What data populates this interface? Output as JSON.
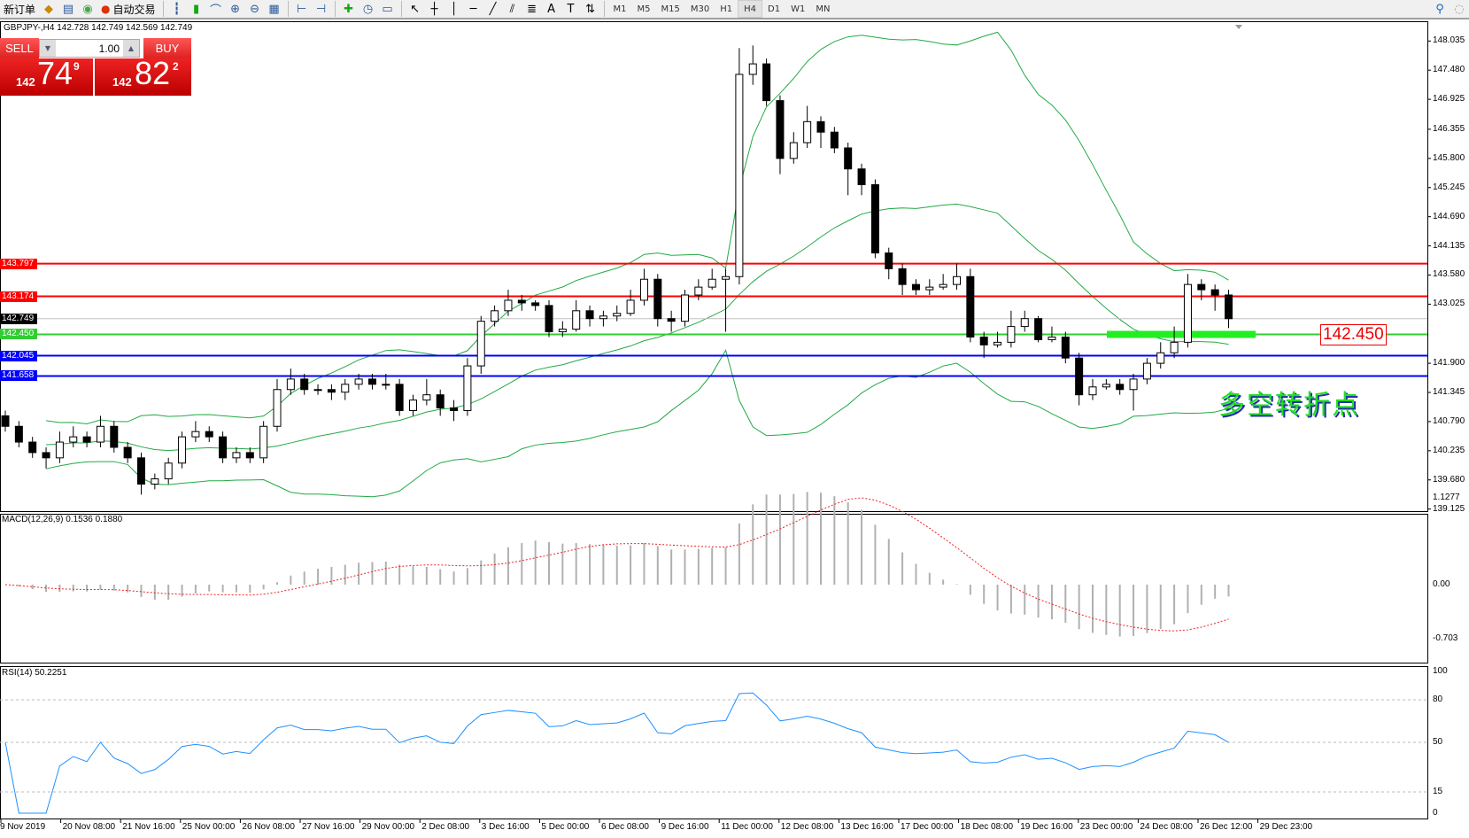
{
  "toolbar": {
    "new_order": "新订单",
    "auto_trading": "自动交易",
    "icons": [
      "market-watch-icon",
      "navigator-icon",
      "signals-icon",
      "bar-chart-icon",
      "candlestick-icon",
      "line-chart-icon",
      "zoom-in-icon",
      "zoom-out-icon",
      "tile-windows-icon",
      "autoscroll-icon",
      "chart-shift-icon",
      "indicators-icon",
      "periods-icon",
      "templates-icon",
      "cursor-icon",
      "crosshair-icon",
      "vertical-line-icon",
      "horizontal-line-icon",
      "trendline-icon",
      "channel-icon",
      "fibonacci-icon",
      "text-icon",
      "text-label-icon",
      "arrows-icon"
    ],
    "timeframes": [
      "M1",
      "M5",
      "M15",
      "M30",
      "H1",
      "H4",
      "D1",
      "W1",
      "MN"
    ],
    "active_timeframe": "H4"
  },
  "chart": {
    "title": "GBPJPY-,H4  142.728 142.749 142.569 142.749",
    "sell_label": "SELL",
    "buy_label": "BUY",
    "lot": "1.00",
    "sell_price": {
      "big": "142",
      "main": "74",
      "sup": "9"
    },
    "buy_price": {
      "big": "142",
      "main": "82",
      "sup": "2"
    },
    "annotation_text": "多空转折点",
    "price_box": "142.450"
  },
  "colors": {
    "bull": "#ffffff",
    "bear": "#000000",
    "bands": "#22aa44",
    "macd_hist": "#b0b0b0",
    "macd_signal": "#ee2222",
    "rsi": "#1e90ff"
  },
  "chart_data": [
    {
      "type": "candlestick",
      "symbol": "GBPJPY-",
      "timeframe": "H4",
      "ylim": [
        139.125,
        148.035
      ],
      "yticks": [
        "148.035",
        "147.480",
        "146.925",
        "146.355",
        "145.800",
        "145.245",
        "144.690",
        "144.135",
        "143.580",
        "143.025",
        "141.900",
        "141.345",
        "140.790",
        "140.235",
        "139.680",
        "139.125"
      ],
      "xticks": [
        "9 Nov 2019",
        "20 Nov 08:00",
        "21 Nov 16:00",
        "25 Nov 00:00",
        "26 Nov 08:00",
        "27 Nov 16:00",
        "29 Nov 00:00",
        "2 Dec 08:00",
        "3 Dec 16:00",
        "5 Dec 00:00",
        "6 Dec 08:00",
        "9 Dec 16:00",
        "11 Dec 00:00",
        "12 Dec 08:00",
        "13 Dec 16:00",
        "17 Dec 00:00",
        "18 Dec 08:00",
        "19 Dec 16:00",
        "23 Dec 00:00",
        "24 Dec 08:00",
        "26 Dec 12:00",
        "29 Dec 23:00"
      ],
      "indicator": "Bollinger Bands(20,2)",
      "hlines": [
        {
          "price": "143.797",
          "color": "#ff0000"
        },
        {
          "price": "143.174",
          "color": "#ff0000"
        },
        {
          "price": "142.749",
          "color": "#c0c0c0",
          "bid": true
        },
        {
          "price": "142.450",
          "color": "#33cc33"
        },
        {
          "price": "142.045",
          "color": "#0000ff"
        },
        {
          "price": "141.658",
          "color": "#0000ff"
        }
      ],
      "ohlc": [
        [
          140.9,
          141.0,
          140.6,
          140.7
        ],
        [
          140.7,
          140.8,
          140.3,
          140.4
        ],
        [
          140.4,
          140.5,
          140.1,
          140.2
        ],
        [
          140.2,
          140.3,
          139.9,
          140.1
        ],
        [
          140.1,
          140.6,
          140.0,
          140.4
        ],
        [
          140.4,
          140.7,
          140.3,
          140.5
        ],
        [
          140.5,
          140.6,
          140.3,
          140.4
        ],
        [
          140.4,
          140.9,
          140.3,
          140.7
        ],
        [
          140.7,
          140.8,
          140.2,
          140.3
        ],
        [
          140.3,
          140.4,
          140.0,
          140.1
        ],
        [
          140.1,
          140.2,
          139.4,
          139.6
        ],
        [
          139.6,
          139.8,
          139.5,
          139.7
        ],
        [
          139.7,
          140.1,
          139.6,
          140.0
        ],
        [
          140.0,
          140.6,
          139.9,
          140.5
        ],
        [
          140.5,
          140.8,
          140.4,
          140.6
        ],
        [
          140.6,
          140.7,
          140.4,
          140.5
        ],
        [
          140.5,
          140.6,
          140.0,
          140.1
        ],
        [
          140.1,
          140.3,
          140.0,
          140.2
        ],
        [
          140.2,
          140.3,
          140.0,
          140.1
        ],
        [
          140.1,
          140.8,
          140.0,
          140.7
        ],
        [
          140.7,
          141.6,
          140.6,
          141.4
        ],
        [
          141.4,
          141.8,
          141.3,
          141.6
        ],
        [
          141.6,
          141.7,
          141.3,
          141.4
        ],
        [
          141.4,
          141.5,
          141.3,
          141.4
        ],
        [
          141.4,
          141.5,
          141.2,
          141.35
        ],
        [
          141.35,
          141.6,
          141.2,
          141.5
        ],
        [
          141.5,
          141.7,
          141.4,
          141.6
        ],
        [
          141.6,
          141.7,
          141.4,
          141.5
        ],
        [
          141.5,
          141.7,
          141.4,
          141.5
        ],
        [
          141.5,
          141.6,
          140.9,
          141.0
        ],
        [
          141.0,
          141.3,
          140.9,
          141.2
        ],
        [
          141.2,
          141.6,
          141.1,
          141.3
        ],
        [
          141.3,
          141.4,
          140.9,
          141.05
        ],
        [
          141.05,
          141.2,
          140.8,
          141.0
        ],
        [
          141.0,
          142.0,
          140.9,
          141.85
        ],
        [
          141.85,
          142.8,
          141.7,
          142.7
        ],
        [
          142.7,
          143.0,
          142.6,
          142.9
        ],
        [
          142.9,
          143.3,
          142.8,
          143.1
        ],
        [
          143.1,
          143.2,
          142.9,
          143.05
        ],
        [
          143.05,
          143.1,
          142.9,
          143.0
        ],
        [
          143.0,
          143.1,
          142.4,
          142.5
        ],
        [
          142.5,
          142.7,
          142.4,
          142.55
        ],
        [
          142.55,
          143.1,
          142.5,
          142.9
        ],
        [
          142.9,
          143.0,
          142.6,
          142.75
        ],
        [
          142.75,
          142.9,
          142.6,
          142.8
        ],
        [
          142.8,
          143.0,
          142.7,
          142.85
        ],
        [
          142.85,
          143.3,
          142.8,
          143.1
        ],
        [
          143.1,
          143.7,
          143.0,
          143.5
        ],
        [
          143.5,
          143.6,
          142.6,
          142.75
        ],
        [
          142.75,
          142.9,
          142.5,
          142.7
        ],
        [
          142.7,
          143.3,
          142.6,
          143.2
        ],
        [
          143.2,
          143.5,
          143.1,
          143.35
        ],
        [
          143.35,
          143.7,
          143.3,
          143.5
        ],
        [
          143.5,
          143.7,
          142.5,
          143.55
        ],
        [
          143.55,
          147.9,
          143.4,
          147.4
        ],
        [
          147.4,
          147.95,
          147.2,
          147.6
        ],
        [
          147.6,
          147.7,
          146.8,
          146.9
        ],
        [
          146.9,
          147.0,
          145.5,
          145.8
        ],
        [
          145.8,
          146.3,
          145.7,
          146.1
        ],
        [
          146.1,
          146.8,
          146.0,
          146.5
        ],
        [
          146.5,
          146.6,
          146.0,
          146.3
        ],
        [
          146.3,
          146.4,
          145.9,
          146.0
        ],
        [
          146.0,
          146.1,
          145.1,
          145.6
        ],
        [
          145.6,
          145.7,
          145.1,
          145.3
        ],
        [
          145.3,
          145.4,
          143.9,
          144.0
        ],
        [
          144.0,
          144.1,
          143.5,
          143.7
        ],
        [
          143.7,
          143.8,
          143.2,
          143.4
        ],
        [
          143.4,
          143.5,
          143.2,
          143.3
        ],
        [
          143.3,
          143.5,
          143.2,
          143.35
        ],
        [
          143.35,
          143.6,
          143.3,
          143.4
        ],
        [
          143.4,
          143.8,
          143.3,
          143.55
        ],
        [
          143.55,
          143.7,
          142.3,
          142.4
        ],
        [
          142.4,
          142.5,
          142.0,
          142.25
        ],
        [
          142.25,
          142.5,
          142.2,
          142.3
        ],
        [
          142.3,
          142.9,
          142.2,
          142.6
        ],
        [
          142.6,
          142.9,
          142.5,
          142.75
        ],
        [
          142.75,
          142.8,
          142.3,
          142.35
        ],
        [
          142.35,
          142.6,
          142.3,
          142.4
        ],
        [
          142.4,
          142.5,
          141.9,
          142.0
        ],
        [
          142.0,
          142.1,
          141.1,
          141.3
        ],
        [
          141.3,
          141.6,
          141.2,
          141.45
        ],
        [
          141.45,
          141.6,
          141.4,
          141.5
        ],
        [
          141.5,
          141.6,
          141.3,
          141.4
        ],
        [
          141.4,
          141.7,
          141.0,
          141.6
        ],
        [
          141.6,
          142.0,
          141.5,
          141.9
        ],
        [
          141.9,
          142.3,
          141.8,
          142.1
        ],
        [
          142.1,
          142.6,
          142.0,
          142.3
        ],
        [
          142.3,
          143.6,
          142.2,
          143.4
        ],
        [
          143.4,
          143.5,
          143.1,
          143.3
        ],
        [
          143.3,
          143.4,
          142.9,
          143.2
        ],
        [
          143.2,
          143.3,
          142.569,
          142.749
        ]
      ]
    },
    {
      "type": "macd",
      "label": "MACD(12,26,9) 0.1536 0.1880",
      "ylim": [
        -0.703,
        1.1277
      ],
      "yticks": [
        "1.1277",
        "0.00",
        "-0.703"
      ]
    },
    {
      "type": "rsi",
      "label": "RSI(14) 50.2251",
      "ylim": [
        0,
        100
      ],
      "yticks": [
        "100",
        "80",
        "50",
        "15",
        "0"
      ],
      "levels": [
        80,
        50,
        15
      ]
    }
  ]
}
